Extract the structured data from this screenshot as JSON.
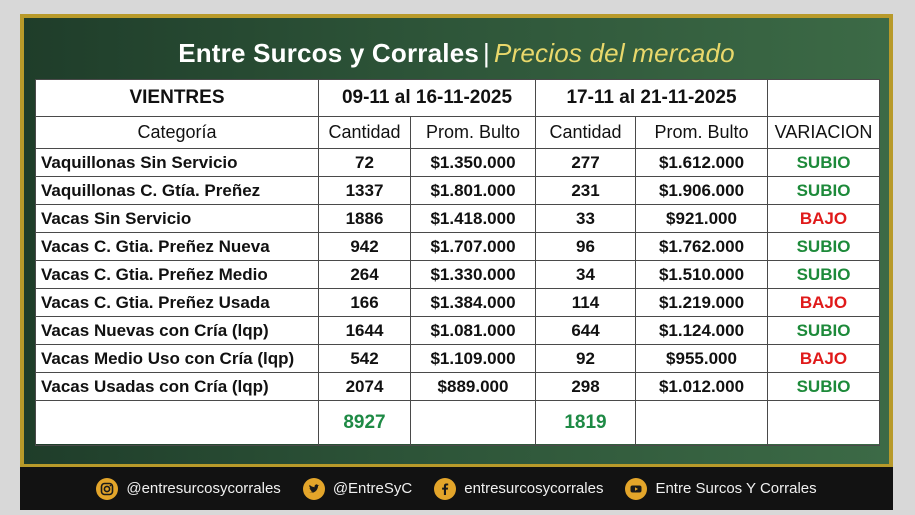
{
  "header": {
    "title": "Entre Surcos y Corrales",
    "separator": "|",
    "subtitle": "Precios del mercado"
  },
  "table": {
    "group_header": {
      "label": "VIENTRES",
      "period1": "09-11 al 16-11-2025",
      "period2": "17-11 al 21-11-2025"
    },
    "columns": [
      "Categoría",
      "Cantidad",
      "Prom. Bulto",
      "Cantidad",
      "Prom. Bulto",
      "VARIACION"
    ],
    "rows": [
      {
        "categoria": "Vaquillonas Sin Servicio",
        "cant1": "72",
        "prom1": "$1.350.000",
        "cant2": "277",
        "prom2": "$1.612.000",
        "variacion": "SUBIO"
      },
      {
        "categoria": "Vaquillonas C. Gtía. Preñez",
        "cant1": "1337",
        "prom1": "$1.801.000",
        "cant2": "231",
        "prom2": "$1.906.000",
        "variacion": "SUBIO"
      },
      {
        "categoria": "Vacas Sin Servicio",
        "cant1": "1886",
        "prom1": "$1.418.000",
        "cant2": "33",
        "prom2": "$921.000",
        "variacion": "BAJO"
      },
      {
        "categoria": "Vacas C. Gtia. Preñez Nueva",
        "cant1": "942",
        "prom1": "$1.707.000",
        "cant2": "96",
        "prom2": "$1.762.000",
        "variacion": "SUBIO"
      },
      {
        "categoria": "Vacas C. Gtia. Preñez Medio",
        "cant1": "264",
        "prom1": "$1.330.000",
        "cant2": "34",
        "prom2": "$1.510.000",
        "variacion": "SUBIO"
      },
      {
        "categoria": "Vacas C. Gtia. Preñez Usada",
        "cant1": "166",
        "prom1": "$1.384.000",
        "cant2": "114",
        "prom2": "$1.219.000",
        "variacion": "BAJO"
      },
      {
        "categoria": "Vacas Nuevas con Cría (lqp)",
        "cant1": "1644",
        "prom1": "$1.081.000",
        "cant2": "644",
        "prom2": "$1.124.000",
        "variacion": "SUBIO"
      },
      {
        "categoria": "Vacas Medio Uso con Cría (lqp)",
        "cant1": "542",
        "prom1": "$1.109.000",
        "cant2": "92",
        "prom2": "$955.000",
        "variacion": "BAJO"
      },
      {
        "categoria": "Vacas Usadas con Cría (lqp)",
        "cant1": "2074",
        "prom1": "$889.000",
        "cant2": "298",
        "prom2": "$1.012.000",
        "variacion": "SUBIO"
      }
    ],
    "totals": {
      "cant1": "8927",
      "cant2": "1819"
    }
  },
  "footer": {
    "instagram": "@entresurcosycorrales",
    "twitter": "@EntreSyC",
    "facebook": "entresurcosycorrales",
    "youtube": "Entre Surcos Y Corrales"
  },
  "colors": {
    "subio": "#1d8a3a",
    "bajo": "#e01a1a",
    "total": "#1e8a45",
    "frame": "#2d5438",
    "gold": "#b89a2a"
  },
  "icons": [
    "instagram-icon",
    "twitter-icon",
    "facebook-icon",
    "youtube-icon"
  ]
}
